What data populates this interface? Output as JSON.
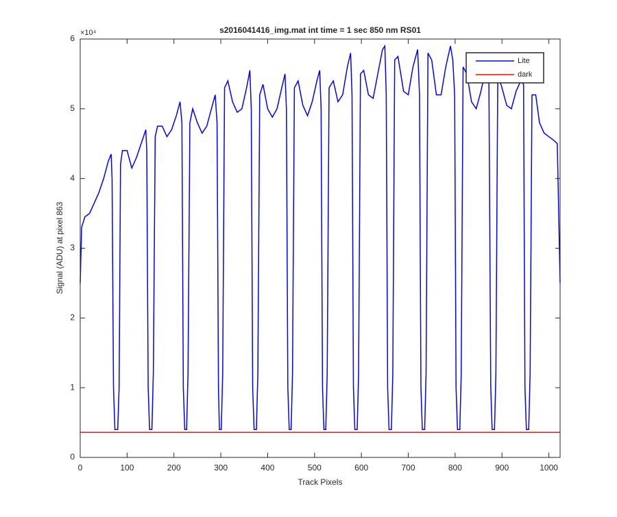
{
  "chart_data": {
    "type": "line",
    "title": "s2016041416_img.mat int time = 1 sec  850 nm RS01",
    "xlabel": "Track Pixels",
    "ylabel": "Signal (ADU) at pixel 863",
    "y_multiplier": "×10⁴",
    "xlim": [
      0,
      1024
    ],
    "xticks": [
      0,
      100,
      200,
      300,
      400,
      500,
      600,
      700,
      800,
      900,
      1000
    ],
    "ylim": [
      0,
      60000
    ],
    "yticks": [
      0,
      {
        "value": 10000,
        "label": "1"
      },
      {
        "value": 20000,
        "label": "2"
      },
      {
        "value": 30000,
        "label": "3"
      },
      {
        "value": 40000,
        "label": "4"
      },
      {
        "value": 50000,
        "label": "5"
      },
      {
        "value": 60000,
        "label": "6"
      }
    ],
    "legend": "top-right",
    "series": [
      {
        "name": "Lite",
        "color": "#0000ff",
        "x": [
          0,
          3,
          10,
          20,
          30,
          40,
          50,
          60,
          66,
          68,
          71,
          74,
          80,
          83,
          86,
          90,
          100,
          110,
          120,
          130,
          140,
          142,
          145,
          148,
          153,
          156,
          160,
          165,
          175,
          185,
          195,
          205,
          213,
          217,
          220,
          223,
          227,
          230,
          234,
          240,
          250,
          260,
          270,
          280,
          288,
          292,
          295,
          297,
          301,
          304,
          308,
          315,
          325,
          335,
          345,
          355,
          362,
          365,
          368,
          371,
          376,
          379,
          383,
          390,
          400,
          410,
          420,
          430,
          437,
          440,
          443,
          446,
          450,
          453,
          457,
          465,
          475,
          485,
          495,
          505,
          511,
          514,
          517,
          520,
          524,
          527,
          531,
          540,
          550,
          560,
          570,
          577,
          580,
          583,
          586,
          591,
          594,
          598,
          605,
          615,
          625,
          635,
          645,
          650,
          653,
          656,
          659,
          664,
          667,
          671,
          678,
          690,
          700,
          710,
          720,
          724,
          727,
          730,
          735,
          738,
          742,
          750,
          760,
          770,
          780,
          790,
          795,
          799,
          802,
          805,
          810,
          813,
          817,
          825,
          835,
          845,
          855,
          865,
          872,
          876,
          879,
          884,
          887,
          891,
          900,
          910,
          920,
          930,
          940,
          946,
          949,
          952,
          957,
          960,
          964,
          972,
          980,
          990,
          1000,
          1010,
          1018,
          1024
        ],
        "values": [
          25000,
          33000,
          34500,
          35000,
          36500,
          38000,
          40000,
          42500,
          43500,
          40000,
          10000,
          4000,
          4000,
          10000,
          42000,
          44000,
          44000,
          41500,
          43000,
          45000,
          47000,
          44000,
          10000,
          4000,
          4000,
          12000,
          46000,
          47500,
          47500,
          46000,
          47000,
          49000,
          51000,
          48000,
          10000,
          4000,
          4000,
          12000,
          48000,
          50000,
          48000,
          46500,
          47500,
          50000,
          52000,
          48000,
          10000,
          4000,
          4000,
          12000,
          53000,
          54000,
          51000,
          49500,
          50000,
          53000,
          55500,
          50000,
          10000,
          4000,
          4000,
          12000,
          52000,
          53500,
          50000,
          48800,
          50000,
          53000,
          55000,
          50000,
          10000,
          4000,
          4000,
          12000,
          53000,
          54000,
          50500,
          49000,
          51000,
          54000,
          55500,
          50000,
          10000,
          4000,
          4000,
          12000,
          53000,
          54000,
          51000,
          52000,
          56000,
          58000,
          52000,
          10000,
          4000,
          4000,
          12000,
          55000,
          55500,
          52000,
          51500,
          55000,
          58500,
          59000,
          52000,
          10000,
          4000,
          4000,
          12000,
          57000,
          57500,
          52500,
          52000,
          56000,
          58500,
          52000,
          10000,
          4000,
          4000,
          12000,
          58000,
          57000,
          52000,
          52000,
          56000,
          59000,
          57000,
          52000,
          10000,
          4000,
          4000,
          12000,
          56000,
          55000,
          51000,
          50000,
          52500,
          55500,
          55000,
          10000,
          4000,
          4000,
          12000,
          55000,
          53000,
          50500,
          50000,
          52500,
          54000,
          53500,
          10000,
          4000,
          4000,
          12000,
          52000,
          52000,
          48000,
          46500,
          46000,
          45500,
          45000,
          25000
        ]
      },
      {
        "name": "dark",
        "color": "#ff0000",
        "x": [
          0,
          1024
        ],
        "values": [
          3600,
          3600
        ]
      }
    ]
  }
}
